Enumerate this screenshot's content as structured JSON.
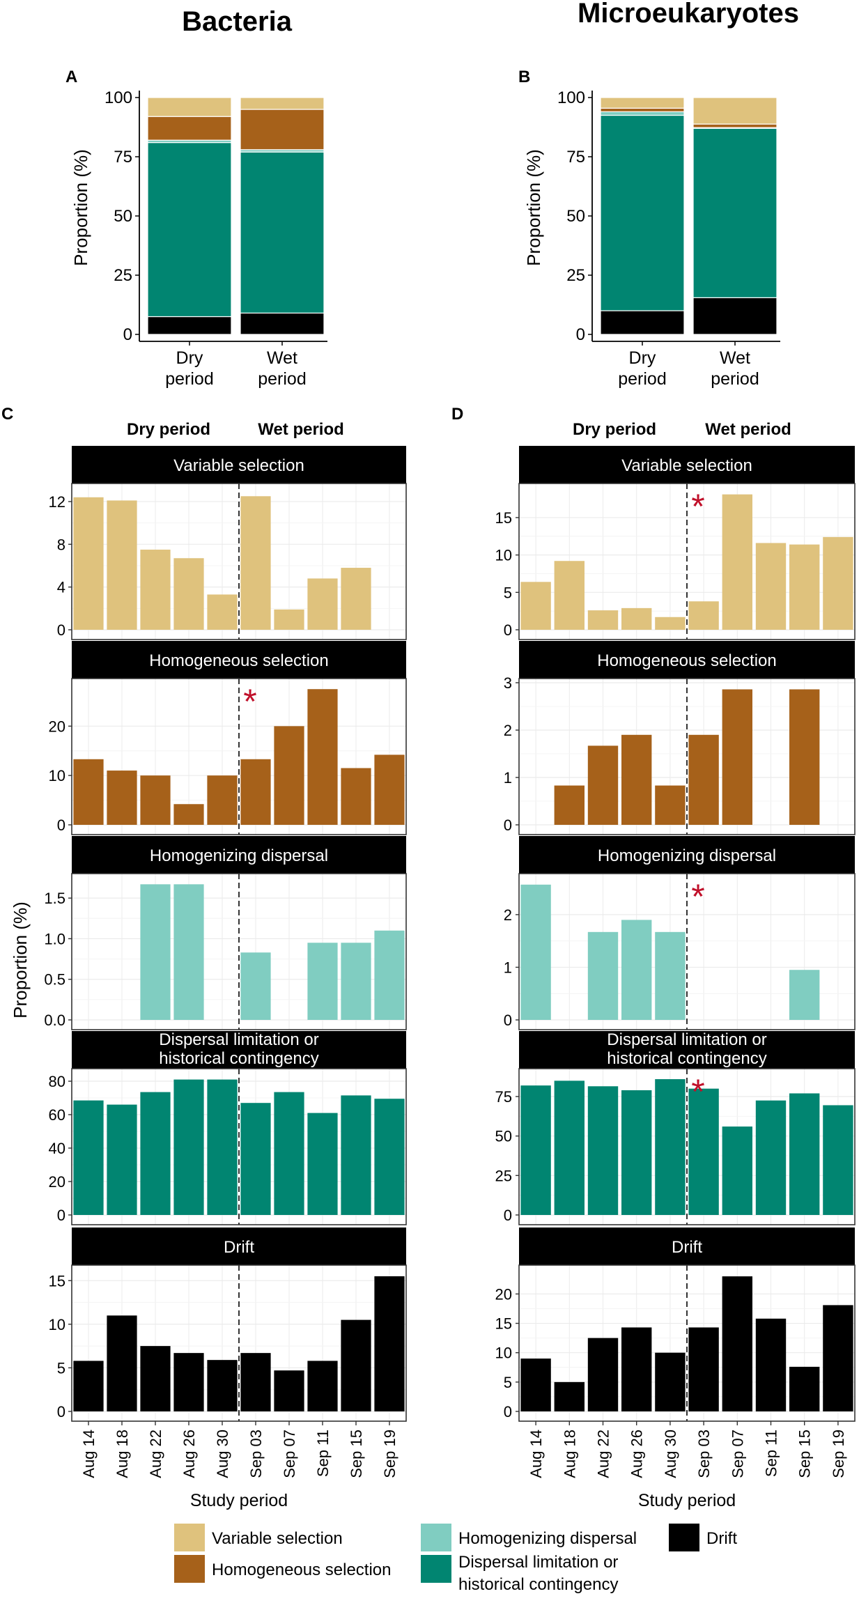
{
  "colors": {
    "variable_selection": "#DFC27D",
    "homogeneous_selection": "#A6611A",
    "homogenizing_dispersal": "#80CDC1",
    "dispersal_limitation": "#018571",
    "drift": "#000000",
    "asterisk": "#C0102A",
    "strip": "#000000",
    "grid": "#ebebeb"
  },
  "labels": {
    "bacteria_title": "Bacteria",
    "micro_title": "Microeukaryotes",
    "panel_a": "A",
    "panel_b": "B",
    "panel_c": "C",
    "panel_d": "D",
    "dry_period_header": "Dry period",
    "wet_period_header": "Wet period",
    "y_axis_label": "Proportion (%)",
    "x_axis_label": "Study period",
    "asterisk": "*"
  },
  "legend": [
    {
      "key": "variable_selection",
      "lines": [
        "Variable selection"
      ]
    },
    {
      "key": "homogeneous_selection",
      "lines": [
        "Homogeneous selection"
      ]
    },
    {
      "key": "homogenizing_dispersal",
      "lines": [
        "Homogenizing dispersal"
      ]
    },
    {
      "key": "dispersal_limitation",
      "lines": [
        "Dispersal limitation or",
        "historical contingency"
      ]
    },
    {
      "key": "drift",
      "lines": [
        "Drift"
      ]
    }
  ],
  "chart_data": [
    {
      "id": "A",
      "type": "bar",
      "stacked": true,
      "title": "Bacteria",
      "categories": [
        [
          "Dry",
          "period"
        ],
        [
          "Wet",
          "period"
        ]
      ],
      "ylabel": "Proportion (%)",
      "ylim": [
        0,
        100
      ],
      "yticks": [
        0,
        25,
        50,
        75,
        100
      ],
      "series": [
        {
          "key": "drift",
          "name": "Drift",
          "values": [
            7.5,
            9
          ]
        },
        {
          "key": "dispersal_limitation",
          "name": "Dispersal limitation or historical contingency",
          "values": [
            73.5,
            68
          ]
        },
        {
          "key": "homogenizing_dispersal",
          "name": "Homogenizing dispersal",
          "values": [
            1,
            1
          ]
        },
        {
          "key": "homogeneous_selection",
          "name": "Homogeneous selection",
          "values": [
            10,
            17
          ]
        },
        {
          "key": "variable_selection",
          "name": "Variable selection",
          "values": [
            8,
            5
          ]
        }
      ]
    },
    {
      "id": "B",
      "type": "bar",
      "stacked": true,
      "title": "Microeukaryotes",
      "categories": [
        [
          "Dry",
          "period"
        ],
        [
          "Wet",
          "period"
        ]
      ],
      "ylabel": "Proportion (%)",
      "ylim": [
        0,
        100
      ],
      "yticks": [
        0,
        25,
        50,
        75,
        100
      ],
      "series": [
        {
          "key": "drift",
          "name": "Drift",
          "values": [
            10,
            15.5
          ]
        },
        {
          "key": "dispersal_limitation",
          "name": "Dispersal limitation or historical contingency",
          "values": [
            82.5,
            71.5
          ]
        },
        {
          "key": "homogenizing_dispersal",
          "name": "Homogenizing dispersal",
          "values": [
            1.5,
            0.3
          ]
        },
        {
          "key": "homogeneous_selection",
          "name": "Homogeneous selection",
          "values": [
            1.5,
            1.5
          ]
        },
        {
          "key": "variable_selection",
          "name": "Variable selection",
          "values": [
            4.5,
            11.2
          ]
        }
      ]
    },
    {
      "id": "C",
      "type": "bar",
      "faceted": true,
      "group": "Bacteria",
      "categories": [
        "Aug 14",
        "Aug 18",
        "Aug 22",
        "Aug 26",
        "Aug 30",
        "Sep 03",
        "Sep 07",
        "Sep 11",
        "Sep 15",
        "Sep 19"
      ],
      "xlabel": "Study period",
      "ylabel": "Proportion (%)",
      "dry_wet_boundary_after": "Aug 30",
      "facets": [
        {
          "key": "variable_selection",
          "title": [
            "Variable selection"
          ],
          "values": [
            12.4,
            12.1,
            7.5,
            6.7,
            3.3,
            12.5,
            1.9,
            4.8,
            5.8,
            null
          ],
          "ylim": [
            0,
            13.3
          ],
          "yticks": [
            0,
            4,
            8,
            12
          ],
          "asterisk": false
        },
        {
          "key": "homogeneous_selection",
          "title": [
            "Homogeneous selection"
          ],
          "values": [
            13.3,
            11,
            10,
            4.2,
            10,
            13.3,
            20,
            27.5,
            11.5,
            14.2
          ],
          "ylim": [
            0,
            28.8
          ],
          "yticks": [
            0,
            10,
            20
          ],
          "asterisk": true
        },
        {
          "key": "homogenizing_dispersal",
          "title": [
            "Homogenizing dispersal"
          ],
          "values": [
            null,
            null,
            1.67,
            1.67,
            null,
            0.83,
            null,
            0.95,
            0.95,
            1.1
          ],
          "ylim": [
            0,
            1.75
          ],
          "yticks": [
            0,
            0.5,
            1,
            1.5
          ],
          "tick_labels": [
            "0.0",
            "0.5",
            "1.0",
            "1.5"
          ],
          "asterisk": false
        },
        {
          "key": "dispersal_limitation",
          "title": [
            "Dispersal limitation or",
            "historical contingency"
          ],
          "values": [
            68.5,
            66,
            73.5,
            81,
            81,
            67,
            73.5,
            61,
            71.5,
            69.5
          ],
          "ylim": [
            0,
            85
          ],
          "yticks": [
            0,
            20,
            40,
            60,
            80
          ],
          "asterisk": false
        },
        {
          "key": "drift",
          "title": [
            "Drift"
          ],
          "values": [
            5.8,
            11,
            7.5,
            6.7,
            5.9,
            6.7,
            4.7,
            5.8,
            10.5,
            15.5
          ],
          "ylim": [
            0,
            16.3
          ],
          "yticks": [
            0,
            5,
            10,
            15
          ],
          "asterisk": false
        }
      ]
    },
    {
      "id": "D",
      "type": "bar",
      "faceted": true,
      "group": "Microeukaryotes",
      "categories": [
        "Aug 14",
        "Aug 18",
        "Aug 22",
        "Aug 26",
        "Aug 30",
        "Sep 03",
        "Sep 07",
        "Sep 11",
        "Sep 15",
        "Sep 19"
      ],
      "xlabel": "Study period",
      "ylabel": "Proportion (%)",
      "dry_wet_boundary_after": "Aug 30",
      "facets": [
        {
          "key": "variable_selection",
          "title": [
            "Variable selection"
          ],
          "values": [
            6.4,
            9.2,
            2.6,
            2.9,
            1.7,
            3.8,
            18.1,
            11.6,
            11.4,
            12.4
          ],
          "ylim": [
            0,
            19
          ],
          "yticks": [
            0,
            5,
            10,
            15
          ],
          "asterisk": true
        },
        {
          "key": "homogeneous_selection",
          "title": [
            "Homogeneous selection"
          ],
          "values": [
            null,
            0.83,
            1.67,
            1.9,
            0.83,
            1.9,
            2.86,
            null,
            2.86,
            null
          ],
          "ylim": [
            0,
            3.0
          ],
          "yticks": [
            0,
            1,
            2,
            3
          ],
          "asterisk": false
        },
        {
          "key": "homogenizing_dispersal",
          "title": [
            "Homogenizing dispersal"
          ],
          "values": [
            2.57,
            null,
            1.67,
            1.9,
            1.67,
            null,
            null,
            null,
            0.95,
            null
          ],
          "ylim": [
            0,
            2.7
          ],
          "yticks": [
            0,
            1,
            2
          ],
          "asterisk": true
        },
        {
          "key": "dispersal_limitation",
          "title": [
            "Dispersal limitation or",
            "historical contingency"
          ],
          "values": [
            82,
            85,
            81.5,
            79,
            86,
            80,
            56,
            72.5,
            77,
            69.5
          ],
          "ylim": [
            0,
            90
          ],
          "yticks": [
            0,
            25,
            50,
            75
          ],
          "asterisk": true
        },
        {
          "key": "drift",
          "title": [
            "Drift"
          ],
          "values": [
            9,
            5,
            12.5,
            14.3,
            10,
            14.3,
            23,
            15.8,
            7.6,
            18.1
          ],
          "ylim": [
            0,
            24.2
          ],
          "yticks": [
            0,
            5,
            10,
            15,
            20
          ],
          "asterisk": false
        }
      ]
    }
  ]
}
